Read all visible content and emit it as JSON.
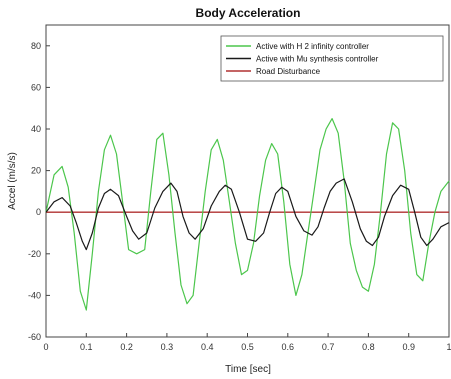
{
  "chart_data": {
    "type": "line",
    "title": "Body Acceleration",
    "xlabel": "Time [sec]",
    "ylabel": "Accel (m/s/s)",
    "xlim": [
      0,
      1
    ],
    "ylim": [
      -60,
      90
    ],
    "xticks": [
      "0",
      "0.1",
      "0.2",
      "0.3",
      "0.4",
      "0.5",
      "0.6",
      "0.7",
      "0.8",
      "0.9",
      "1"
    ],
    "yticks": [
      "-60",
      "-40",
      "-20",
      "0",
      "20",
      "40",
      "60",
      "80"
    ],
    "grid": false,
    "legend_position": "top-right",
    "series": [
      {
        "name": "Active with H 2 infinity controller",
        "color": "#4cc64c",
        "x": [
          0,
          0.02,
          0.04,
          0.055,
          0.07,
          0.085,
          0.1,
          0.115,
          0.13,
          0.145,
          0.16,
          0.175,
          0.19,
          0.205,
          0.225,
          0.245,
          0.26,
          0.275,
          0.29,
          0.305,
          0.32,
          0.335,
          0.35,
          0.365,
          0.38,
          0.395,
          0.41,
          0.425,
          0.44,
          0.455,
          0.47,
          0.485,
          0.5,
          0.515,
          0.53,
          0.545,
          0.56,
          0.575,
          0.59,
          0.605,
          0.62,
          0.635,
          0.65,
          0.665,
          0.68,
          0.695,
          0.71,
          0.725,
          0.74,
          0.755,
          0.77,
          0.785,
          0.8,
          0.815,
          0.83,
          0.845,
          0.86,
          0.875,
          0.89,
          0.905,
          0.92,
          0.935,
          0.95,
          0.965,
          0.98,
          1.0
        ],
        "y": [
          0,
          18,
          22,
          12,
          -10,
          -38,
          -47,
          -20,
          10,
          30,
          37,
          28,
          5,
          -18,
          -20,
          -18,
          10,
          35,
          38,
          18,
          -10,
          -35,
          -44,
          -40,
          -15,
          10,
          30,
          35,
          25,
          5,
          -15,
          -30,
          -28,
          -15,
          8,
          25,
          33,
          28,
          5,
          -25,
          -40,
          -30,
          -10,
          10,
          30,
          40,
          45,
          38,
          15,
          -15,
          -28,
          -36,
          -38,
          -25,
          0,
          28,
          43,
          40,
          20,
          -10,
          -30,
          -33,
          -15,
          0,
          10,
          15
        ]
      },
      {
        "name": "Active with Mu synthesis controller",
        "color": "#1a1a1a",
        "x": [
          0,
          0.02,
          0.04,
          0.06,
          0.075,
          0.09,
          0.1,
          0.115,
          0.13,
          0.145,
          0.16,
          0.18,
          0.2,
          0.215,
          0.23,
          0.25,
          0.27,
          0.29,
          0.31,
          0.325,
          0.34,
          0.355,
          0.37,
          0.39,
          0.41,
          0.43,
          0.445,
          0.46,
          0.48,
          0.5,
          0.52,
          0.54,
          0.555,
          0.57,
          0.585,
          0.6,
          0.62,
          0.64,
          0.66,
          0.675,
          0.69,
          0.705,
          0.72,
          0.74,
          0.76,
          0.78,
          0.795,
          0.81,
          0.825,
          0.84,
          0.86,
          0.88,
          0.9,
          0.915,
          0.93,
          0.945,
          0.96,
          0.98,
          1.0
        ],
        "y": [
          0,
          5,
          7,
          3,
          -5,
          -14,
          -18,
          -10,
          2,
          9,
          11,
          8,
          -2,
          -9,
          -13,
          -10,
          2,
          10,
          14,
          10,
          -2,
          -10,
          -13,
          -8,
          3,
          10,
          13,
          11,
          0,
          -13,
          -14,
          -10,
          0,
          9,
          12,
          10,
          -2,
          -9,
          -11,
          -7,
          2,
          10,
          14,
          16,
          5,
          -8,
          -14,
          -16,
          -12,
          -2,
          8,
          13,
          11,
          0,
          -12,
          -16,
          -13,
          -7,
          -5
        ]
      },
      {
        "name": "Road Disturbance",
        "color": "#b03030",
        "x": [
          0,
          1
        ],
        "y": [
          0,
          0
        ]
      }
    ]
  }
}
